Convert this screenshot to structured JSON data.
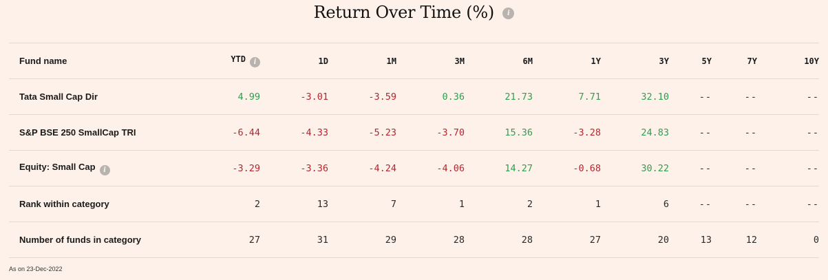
{
  "title": "Return Over Time (%)",
  "icons": {
    "info": "info-icon",
    "info_glyph": "i"
  },
  "colors": {
    "background": "#fdf1ea",
    "positive": "#2e9e4f",
    "negative": "#b3262f",
    "divider": "#e2d8d2"
  },
  "table": {
    "name_header": "Fund name",
    "periods": [
      "YTD",
      "1D",
      "1M",
      "3M",
      "6M",
      "1Y",
      "3Y",
      "5Y",
      "7Y",
      "10Y"
    ],
    "rows": [
      {
        "name": "Tata Small Cap Dir",
        "info": false,
        "values": [
          "4.99",
          "-3.01",
          "-3.59",
          "0.36",
          "21.73",
          "7.71",
          "32.10",
          "--",
          "--",
          "--"
        ],
        "tone": [
          "pos",
          "neg",
          "neg",
          "pos",
          "pos",
          "pos",
          "pos",
          "na",
          "na",
          "na"
        ]
      },
      {
        "name": "S&P BSE 250 SmallCap TRI",
        "info": false,
        "values": [
          "-6.44",
          "-4.33",
          "-5.23",
          "-3.70",
          "15.36",
          "-3.28",
          "24.83",
          "--",
          "--",
          "--"
        ],
        "tone": [
          "neg",
          "neg",
          "neg",
          "neg",
          "pos",
          "neg",
          "pos",
          "na",
          "na",
          "na"
        ]
      },
      {
        "name": "Equity: Small Cap",
        "info": true,
        "values": [
          "-3.29",
          "-3.36",
          "-4.24",
          "-4.06",
          "14.27",
          "-0.68",
          "30.22",
          "--",
          "--",
          "--"
        ],
        "tone": [
          "neg",
          "neg",
          "neg",
          "neg",
          "pos",
          "neg",
          "pos",
          "na",
          "na",
          "na"
        ]
      },
      {
        "name": "Rank within category",
        "info": false,
        "values": [
          "2",
          "13",
          "7",
          "1",
          "2",
          "1",
          "6",
          "--",
          "--",
          "--"
        ],
        "tone": [
          "plain",
          "plain",
          "plain",
          "plain",
          "plain",
          "plain",
          "plain",
          "na",
          "na",
          "na"
        ]
      },
      {
        "name": "Number of funds in category",
        "info": false,
        "values": [
          "27",
          "31",
          "29",
          "28",
          "28",
          "27",
          "20",
          "13",
          "12",
          "0"
        ],
        "tone": [
          "plain",
          "plain",
          "plain",
          "plain",
          "plain",
          "plain",
          "plain",
          "plain",
          "plain",
          "plain"
        ]
      }
    ]
  },
  "footnote": "As on 23-Dec-2022"
}
